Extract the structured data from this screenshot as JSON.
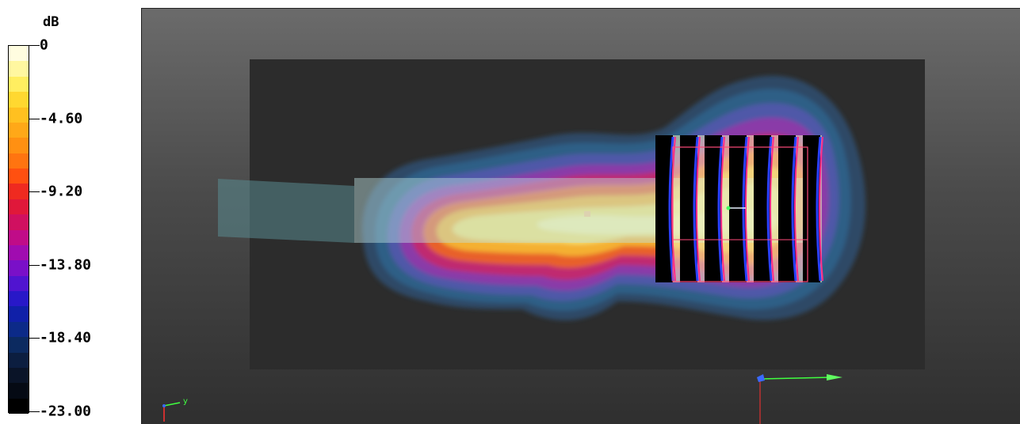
{
  "legend": {
    "unit": "dB",
    "labels": [
      "0",
      "-4.60",
      "-9.20",
      "-13.80",
      "-18.40",
      "-23.00"
    ],
    "colors": [
      "#fffde0",
      "#fff7a0",
      "#ffee60",
      "#ffd830",
      "#ffc020",
      "#ffa818",
      "#ff9012",
      "#ff7410",
      "#ff5010",
      "#ef2a20",
      "#e0183a",
      "#d01060",
      "#c00c88",
      "#a00cb0",
      "#7a10c8",
      "#5014d0",
      "#2818c8",
      "#1020a8",
      "#0c2a88",
      "#0c2a60",
      "#0c1e40",
      "#0a1428",
      "#050a14",
      "#000000"
    ]
  },
  "viewport": {
    "background": "#4a4a4a",
    "axes": {
      "small_label": "y"
    }
  }
}
